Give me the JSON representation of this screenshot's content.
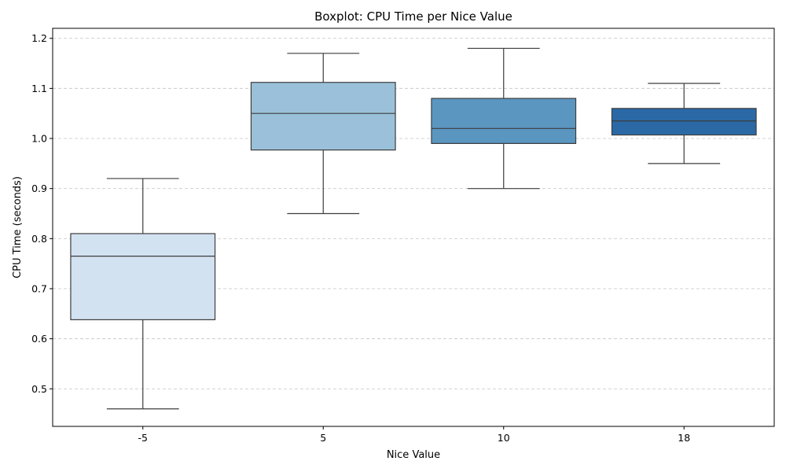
{
  "chart_data": {
    "type": "boxplot",
    "title": "Boxplot: CPU Time per Nice Value",
    "xlabel": "Nice Value",
    "ylabel": "CPU Time (seconds)",
    "ylim": [
      0.425,
      1.22
    ],
    "yticks": [
      "0.5",
      "0.6",
      "0.7",
      "0.8",
      "0.9",
      "1.0",
      "1.1",
      "1.2"
    ],
    "grid": "y-dashed",
    "categories": [
      "-5",
      "5",
      "10",
      "18"
    ],
    "boxes": [
      {
        "category": "-5",
        "whisker_low": 0.46,
        "q1": 0.638,
        "median": 0.765,
        "q3": 0.81,
        "whisker_high": 0.92,
        "color": "#d3e2f1"
      },
      {
        "category": "5",
        "whisker_low": 0.85,
        "q1": 0.977,
        "median": 1.05,
        "q3": 1.112,
        "whisker_high": 1.17,
        "color": "#9ac1d9"
      },
      {
        "category": "10",
        "whisker_low": 0.9,
        "q1": 0.99,
        "median": 1.02,
        "q3": 1.08,
        "whisker_high": 1.18,
        "color": "#5b96c1"
      },
      {
        "category": "18",
        "whisker_low": 0.95,
        "q1": 1.007,
        "median": 1.035,
        "q3": 1.06,
        "whisker_high": 1.11,
        "color": "#2a69a6"
      }
    ]
  }
}
